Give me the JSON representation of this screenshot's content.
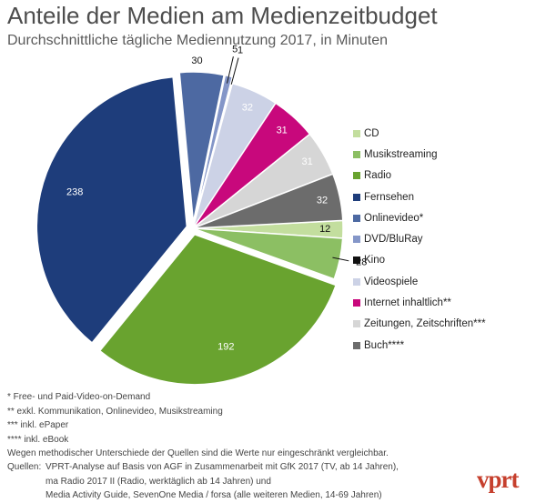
{
  "header": {
    "title": "Anteile der Medien am Medienzeitbudget",
    "subtitle": "Durchschnittliche tägliche Mediennutzung 2017, in Minuten"
  },
  "chart_data": {
    "type": "pie",
    "title": "Anteile der Medien am Medienzeitbudget",
    "subtitle": "Durchschnittliche tägliche Mediennutzung 2017, in Minuten",
    "legend_position": "right",
    "slices": [
      {
        "label": "CD",
        "value": 12,
        "color": "#c3de9e",
        "exploded": false
      },
      {
        "label": "Musikstreaming",
        "value": 28,
        "color": "#8cbf63",
        "exploded": false
      },
      {
        "label": "Radio",
        "value": 192,
        "color": "#69a32f",
        "exploded": true
      },
      {
        "label": "Fernsehen",
        "value": 238,
        "color": "#1e3d7b",
        "exploded": true
      },
      {
        "label": "Onlinevideo*",
        "value": 30,
        "color": "#4d69a2",
        "exploded": true
      },
      {
        "label": "DVD/BluRay",
        "value": 5,
        "color": "#8496c8",
        "exploded": true
      },
      {
        "label": "Kino",
        "value": 1,
        "color": "#111111",
        "exploded": true
      },
      {
        "label": "Videospiele",
        "value": 32,
        "color": "#ccd2e6",
        "exploded": false
      },
      {
        "label": "Internet inhaltlich**",
        "value": 31,
        "color": "#c8087c",
        "exploded": false
      },
      {
        "label": "Zeitungen, Zeitschriften***",
        "value": 31,
        "color": "#d6d6d6",
        "exploded": false
      },
      {
        "label": "Buch****",
        "value": 32,
        "color": "#6c6c6c",
        "exploded": false
      }
    ]
  },
  "notes": [
    "* Free- und Paid-Video-on-Demand",
    "** exkl. Kommunikation, Onlinevideo, Musikstreaming",
    "*** inkl. ePaper",
    "**** inkl. eBook",
    "Wegen methodischer Unterschiede der Quellen sind die Werte nur eingeschränkt vergleichbar."
  ],
  "sources": {
    "label": "Quellen:",
    "lines": [
      "VPRT-Analyse auf Basis von AGF in Zusammenarbeit mit GfK 2017 (TV, ab 14 Jahren),",
      "ma Radio 2017 II (Radio, werktäglich ab 14 Jahren) und",
      "Media Activity Guide, SevenOne Media / forsa (alle weiteren Medien, 14-69 Jahren)"
    ]
  },
  "logo": {
    "text": "vprt"
  }
}
